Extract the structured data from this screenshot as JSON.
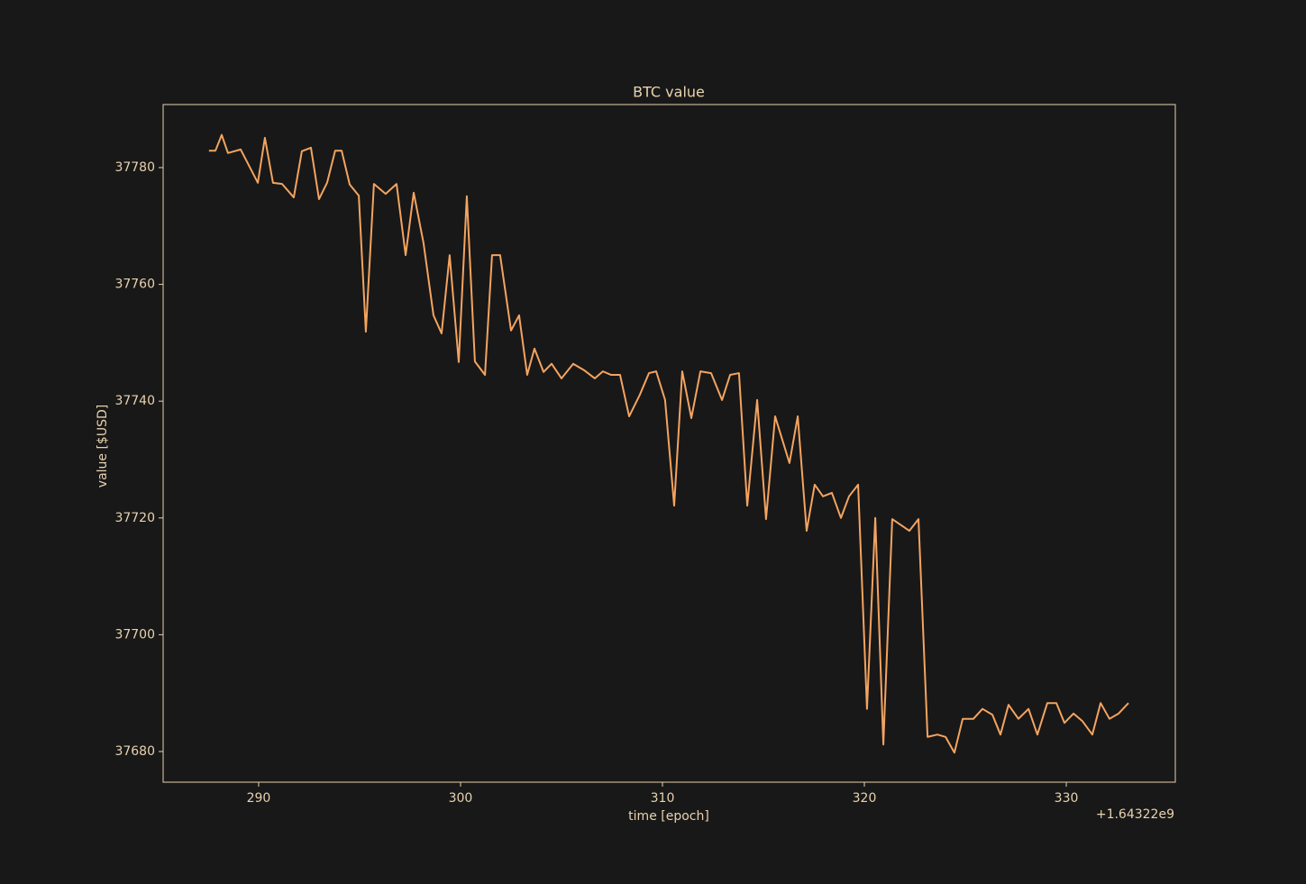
{
  "chart_data": {
    "type": "line",
    "title": "BTC value",
    "x_label": "time [epoch]",
    "y_label": "value [$USD]",
    "x_offset_label": "+1.64322e9",
    "x": [
      287.54,
      287.86,
      288.17,
      288.48,
      289.11,
      289.96,
      290.31,
      290.71,
      291.16,
      291.74,
      292.14,
      292.59,
      292.99,
      293.39,
      293.79,
      294.11,
      294.51,
      294.96,
      295.31,
      295.71,
      296.29,
      296.83,
      297.28,
      297.68,
      298.17,
      298.66,
      299.06,
      299.46,
      299.91,
      300.31,
      300.71,
      301.21,
      301.56,
      301.96,
      302.5,
      302.9,
      303.3,
      303.66,
      304.11,
      304.51,
      305.0,
      305.58,
      306.12,
      306.65,
      307.05,
      307.46,
      307.9,
      308.35,
      308.88,
      309.33,
      309.69,
      310.13,
      310.58,
      310.98,
      311.43,
      311.88,
      312.41,
      312.95,
      313.35,
      313.79,
      314.2,
      314.69,
      315.13,
      315.58,
      316.29,
      316.7,
      317.14,
      317.54,
      317.95,
      318.39,
      318.84,
      319.24,
      319.69,
      320.13,
      320.54,
      320.94,
      321.38,
      322.23,
      322.68,
      323.13,
      323.62,
      324.02,
      324.46,
      324.87,
      325.4,
      325.85,
      326.34,
      326.74,
      327.14,
      327.63,
      328.13,
      328.57,
      329.06,
      329.51,
      329.91,
      330.36,
      330.8,
      331.29,
      331.7,
      332.14,
      332.59,
      333.08
    ],
    "series": [
      {
        "color": "#f4a460",
        "values": [
          37782.9,
          37782.9,
          37785.6,
          37782.5,
          37783.1,
          37777.4,
          37785.1,
          37777.4,
          37777.2,
          37774.9,
          37782.8,
          37783.4,
          37774.6,
          37777.4,
          37782.9,
          37782.9,
          37777.1,
          37775.2,
          37751.9,
          37777.2,
          37775.5,
          37777.2,
          37765.0,
          37775.7,
          37767.0,
          37754.7,
          37751.6,
          37765.0,
          37746.7,
          37775.1,
          37746.8,
          37744.5,
          37765.0,
          37765.0,
          37752.1,
          37754.7,
          37744.5,
          37749.0,
          37745.0,
          37746.4,
          37743.9,
          37746.4,
          37745.3,
          37743.9,
          37745.1,
          37744.5,
          37744.5,
          37737.4,
          37741.1,
          37744.8,
          37745.1,
          37740.2,
          37722.1,
          37745.1,
          37737.1,
          37745.1,
          37744.8,
          37740.2,
          37744.5,
          37744.8,
          37722.1,
          37740.2,
          37719.8,
          37737.4,
          37729.4,
          37737.4,
          37717.8,
          37725.7,
          37723.7,
          37724.3,
          37720.0,
          37723.7,
          37725.7,
          37687.3,
          37720.0,
          37681.2,
          37719.8,
          37717.8,
          37719.8,
          37682.5,
          37682.9,
          37682.5,
          37679.8,
          37685.6,
          37685.6,
          37687.3,
          37686.3,
          37682.9,
          37688.0,
          37685.6,
          37687.3,
          37682.9,
          37688.3,
          37688.3,
          37684.9,
          37686.5,
          37685.2,
          37682.9,
          37688.3,
          37685.6,
          37686.5,
          37688.3
        ]
      }
    ],
    "xlim": [
      285.27,
      335.4
    ],
    "xticks": [
      290,
      300,
      310,
      320,
      330
    ],
    "ylim": [
      37674.75,
      37790.8
    ],
    "yticks": [
      37680,
      37700,
      37720,
      37740,
      37760,
      37780
    ],
    "background": "#181818",
    "foreground": "#e8d2ae"
  }
}
